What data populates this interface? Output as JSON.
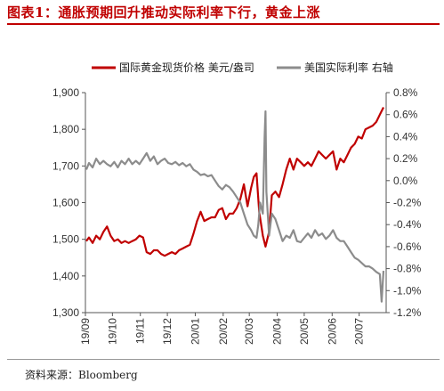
{
  "figure_title": "图表1：通胀预期回升推动实际利率下行，黄金上涨",
  "source": "资料来源：Bloomberg",
  "colors": {
    "gold": "#c00000",
    "rate": "#8c8c8c",
    "title": "#c00000",
    "axis": "#555555"
  },
  "chart_data": {
    "type": "line",
    "title": "",
    "xlabel": "",
    "ylabel": "",
    "y2label": "",
    "legend_position": "top",
    "grid": false,
    "xlim": [
      "2019-09-01",
      "2020-07-31"
    ],
    "ylim": [
      1300,
      1900
    ],
    "y2lim": [
      -1.2,
      0.8
    ],
    "x_tick_labels": [
      "19/09",
      "19/10",
      "19/11",
      "19/12",
      "20/01",
      "20/02",
      "20/03",
      "20/04",
      "20/05",
      "20/06",
      "20/07"
    ],
    "x_ticks": [
      "2019-09-01",
      "2019-10-01",
      "2019-11-01",
      "2019-12-01",
      "2020-01-01",
      "2020-02-01",
      "2020-03-01",
      "2020-04-01",
      "2020-05-01",
      "2020-06-01",
      "2020-07-01"
    ],
    "y_tick_labels": [
      "1,300",
      "1,400",
      "1,500",
      "1,600",
      "1,700",
      "1,800",
      "1,900"
    ],
    "y_ticks": [
      1300,
      1400,
      1500,
      1600,
      1700,
      1800,
      1900
    ],
    "y2_tick_labels": [
      "-1.2%",
      "-1.0%",
      "-0.8%",
      "-0.6%",
      "-0.4%",
      "-0.2%",
      "0.0%",
      "0.2%",
      "0.4%",
      "0.6%",
      "0.8%"
    ],
    "y2_ticks": [
      -1.2,
      -1.0,
      -0.8,
      -0.6,
      -0.4,
      -0.2,
      0.0,
      0.2,
      0.4,
      0.6,
      0.8
    ],
    "series": [
      {
        "name": "国际黄金现货价格 美元/盎司",
        "axis": "left",
        "color": "#c00000",
        "x": [
          "2019-09-02",
          "2019-09-05",
          "2019-09-09",
          "2019-09-13",
          "2019-09-17",
          "2019-09-21",
          "2019-09-25",
          "2019-09-29",
          "2019-10-03",
          "2019-10-07",
          "2019-10-11",
          "2019-10-15",
          "2019-10-19",
          "2019-10-23",
          "2019-10-27",
          "2019-10-31",
          "2019-11-04",
          "2019-11-08",
          "2019-11-12",
          "2019-11-16",
          "2019-11-20",
          "2019-11-24",
          "2019-11-28",
          "2019-12-02",
          "2019-12-06",
          "2019-12-10",
          "2019-12-14",
          "2019-12-18",
          "2019-12-22",
          "2019-12-26",
          "2019-12-30",
          "2020-01-03",
          "2020-01-07",
          "2020-01-11",
          "2020-01-15",
          "2020-01-19",
          "2020-01-23",
          "2020-01-27",
          "2020-01-31",
          "2020-02-04",
          "2020-02-08",
          "2020-02-12",
          "2020-02-16",
          "2020-02-20",
          "2020-02-24",
          "2020-02-28",
          "2020-03-03",
          "2020-03-06",
          "2020-03-09",
          "2020-03-12",
          "2020-03-16",
          "2020-03-19",
          "2020-03-23",
          "2020-03-26",
          "2020-03-30",
          "2020-04-03",
          "2020-04-07",
          "2020-04-11",
          "2020-04-15",
          "2020-04-19",
          "2020-04-23",
          "2020-04-27",
          "2020-05-01",
          "2020-05-05",
          "2020-05-09",
          "2020-05-13",
          "2020-05-17",
          "2020-05-21",
          "2020-05-25",
          "2020-05-29",
          "2020-06-02",
          "2020-06-06",
          "2020-06-10",
          "2020-06-14",
          "2020-06-18",
          "2020-06-22",
          "2020-06-26",
          "2020-06-30",
          "2020-07-04",
          "2020-07-08",
          "2020-07-12",
          "2020-07-16",
          "2020-07-20",
          "2020-07-24",
          "2020-07-28"
        ],
        "values": [
          1495,
          1505,
          1490,
          1510,
          1500,
          1520,
          1535,
          1510,
          1495,
          1500,
          1490,
          1495,
          1490,
          1495,
          1500,
          1510,
          1505,
          1465,
          1460,
          1470,
          1470,
          1460,
          1455,
          1460,
          1465,
          1460,
          1470,
          1475,
          1480,
          1485,
          1515,
          1550,
          1575,
          1550,
          1555,
          1560,
          1560,
          1580,
          1585,
          1555,
          1570,
          1570,
          1585,
          1610,
          1650,
          1590,
          1640,
          1670,
          1680,
          1575,
          1510,
          1480,
          1520,
          1620,
          1630,
          1615,
          1650,
          1690,
          1720,
          1690,
          1720,
          1710,
          1700,
          1710,
          1700,
          1720,
          1740,
          1730,
          1720,
          1730,
          1740,
          1690,
          1720,
          1710,
          1730,
          1750,
          1760,
          1780,
          1775,
          1800,
          1805,
          1810,
          1820,
          1840,
          1860
        ]
      },
      {
        "name": "美国实际利率 右轴",
        "axis": "right",
        "color": "#8c8c8c",
        "x": [
          "2019-09-02",
          "2019-09-05",
          "2019-09-09",
          "2019-09-13",
          "2019-09-17",
          "2019-09-21",
          "2019-09-25",
          "2019-09-29",
          "2019-10-03",
          "2019-10-07",
          "2019-10-11",
          "2019-10-15",
          "2019-10-19",
          "2019-10-23",
          "2019-10-27",
          "2019-10-31",
          "2019-11-04",
          "2019-11-08",
          "2019-11-12",
          "2019-11-16",
          "2019-11-20",
          "2019-11-24",
          "2019-11-28",
          "2019-12-02",
          "2019-12-06",
          "2019-12-10",
          "2019-12-14",
          "2019-12-18",
          "2019-12-22",
          "2019-12-26",
          "2019-12-30",
          "2020-01-03",
          "2020-01-07",
          "2020-01-11",
          "2020-01-15",
          "2020-01-19",
          "2020-01-23",
          "2020-01-27",
          "2020-01-31",
          "2020-02-04",
          "2020-02-08",
          "2020-02-12",
          "2020-02-16",
          "2020-02-20",
          "2020-02-24",
          "2020-02-28",
          "2020-03-03",
          "2020-03-06",
          "2020-03-09",
          "2020-03-11",
          "2020-03-13",
          "2020-03-16",
          "2020-03-18",
          "2020-03-19",
          "2020-03-20",
          "2020-03-23",
          "2020-03-26",
          "2020-03-30",
          "2020-04-03",
          "2020-04-07",
          "2020-04-11",
          "2020-04-15",
          "2020-04-19",
          "2020-04-23",
          "2020-04-27",
          "2020-05-01",
          "2020-05-05",
          "2020-05-09",
          "2020-05-13",
          "2020-05-17",
          "2020-05-21",
          "2020-05-25",
          "2020-05-29",
          "2020-06-02",
          "2020-06-06",
          "2020-06-10",
          "2020-06-14",
          "2020-06-18",
          "2020-06-22",
          "2020-06-26",
          "2020-06-30",
          "2020-07-04",
          "2020-07-08",
          "2020-07-12",
          "2020-07-16",
          "2020-07-20",
          "2020-07-24",
          "2020-07-26",
          "2020-07-28"
        ],
        "values": [
          0.1,
          0.16,
          0.12,
          0.2,
          0.15,
          0.18,
          0.15,
          0.13,
          0.17,
          0.12,
          0.18,
          0.15,
          0.2,
          0.15,
          0.18,
          0.15,
          0.2,
          0.25,
          0.18,
          0.22,
          0.15,
          0.18,
          0.2,
          0.16,
          0.15,
          0.17,
          0.14,
          0.16,
          0.13,
          0.15,
          0.1,
          0.08,
          0.05,
          0.06,
          0.04,
          0.05,
          0.0,
          -0.05,
          -0.08,
          -0.04,
          -0.06,
          -0.1,
          -0.15,
          -0.2,
          -0.3,
          -0.4,
          -0.45,
          -0.5,
          -0.52,
          -0.4,
          -0.2,
          -0.3,
          0.4,
          0.63,
          -0.1,
          -0.5,
          -0.3,
          -0.35,
          -0.45,
          -0.55,
          -0.5,
          -0.52,
          -0.45,
          -0.55,
          -0.56,
          -0.52,
          -0.48,
          -0.52,
          -0.45,
          -0.5,
          -0.48,
          -0.53,
          -0.5,
          -0.45,
          -0.52,
          -0.55,
          -0.55,
          -0.6,
          -0.65,
          -0.7,
          -0.72,
          -0.75,
          -0.78,
          -0.78,
          -0.8,
          -0.83,
          -0.85,
          -1.1,
          -0.82
        ]
      }
    ]
  }
}
